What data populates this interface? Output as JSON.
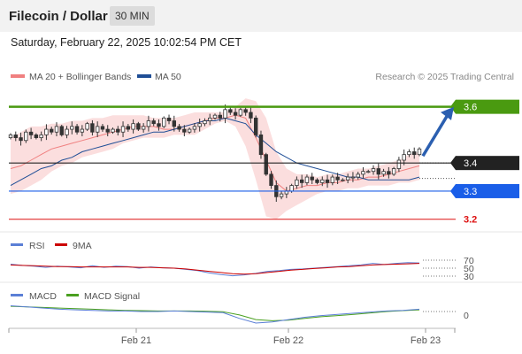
{
  "header": {
    "title": "Filecoin / Dollar",
    "timeframe": "30 MIN"
  },
  "datetime": "Saturday, February 22, 2025 10:02:54 PM CET",
  "legend": {
    "ma20": "MA 20 + Bollinger Bands",
    "ma50": "MA 50",
    "ma20_color": "#f08080",
    "ma50_color": "#1f4e96"
  },
  "copyright": "Research © 2025 Trading Central",
  "levels": [
    {
      "label": "3.6",
      "value": 3.6,
      "color": "#4a9a10",
      "style": "box"
    },
    {
      "label": "3.4",
      "value": 3.4,
      "color": "#222222",
      "style": "box"
    },
    {
      "label": "3.3",
      "value": 3.3,
      "color": "#1a5ee8",
      "style": "box"
    },
    {
      "label": "3.2",
      "value": 3.2,
      "color": "#dd1111",
      "style": "text"
    }
  ],
  "rsi": {
    "label": "RSI",
    "ma_label": "9MA",
    "levels": [
      "70",
      "50",
      "30"
    ],
    "rsi_color": "#5b7fd6",
    "ma_color": "#cc0000"
  },
  "macd": {
    "label": "MACD",
    "signal_label": "MACD Signal",
    "zero_label": "0",
    "macd_color": "#5b7fd6",
    "signal_color": "#4aa020"
  },
  "xaxis": {
    "labels": [
      "Feb 21",
      "Feb 22",
      "Feb 23"
    ]
  },
  "chart_data": {
    "type": "candlestick",
    "ylim": [
      3.155,
      3.665
    ],
    "ma20": [
      3.38,
      3.39,
      3.41,
      3.43,
      3.45,
      3.46,
      3.47,
      3.48,
      3.49,
      3.5,
      3.51,
      3.52,
      3.53,
      3.53,
      3.53,
      3.52,
      3.52,
      3.53,
      3.54,
      3.55,
      3.56,
      3.56,
      3.57,
      3.56,
      3.49,
      3.41,
      3.33,
      3.3,
      3.31,
      3.32,
      3.32,
      3.33,
      3.33,
      3.34,
      3.34,
      3.35,
      3.35,
      3.36,
      3.37,
      3.38,
      3.39
    ],
    "ma50": [
      3.32,
      3.34,
      3.36,
      3.38,
      3.39,
      3.41,
      3.42,
      3.44,
      3.45,
      3.46,
      3.47,
      3.48,
      3.49,
      3.5,
      3.51,
      3.51,
      3.52,
      3.53,
      3.54,
      3.55,
      3.55,
      3.56,
      3.55,
      3.54,
      3.5,
      3.47,
      3.44,
      3.42,
      3.4,
      3.39,
      3.38,
      3.37,
      3.36,
      3.35,
      3.35,
      3.34,
      3.34,
      3.34,
      3.34,
      3.34,
      3.35
    ],
    "bb_upper": [
      3.49,
      3.51,
      3.53,
      3.53,
      3.54,
      3.54,
      3.55,
      3.55,
      3.56,
      3.56,
      3.57,
      3.57,
      3.57,
      3.57,
      3.56,
      3.56,
      3.56,
      3.57,
      3.58,
      3.58,
      3.58,
      3.58,
      3.6,
      3.63,
      3.62,
      3.56,
      3.44,
      3.38,
      3.36,
      3.36,
      3.35,
      3.36,
      3.36,
      3.37,
      3.38,
      3.38,
      3.39,
      3.4,
      3.41,
      3.43,
      3.44
    ],
    "bb_lower": [
      3.29,
      3.3,
      3.32,
      3.34,
      3.37,
      3.39,
      3.4,
      3.42,
      3.43,
      3.44,
      3.45,
      3.47,
      3.48,
      3.49,
      3.49,
      3.49,
      3.5,
      3.5,
      3.5,
      3.52,
      3.54,
      3.55,
      3.53,
      3.46,
      3.34,
      3.21,
      3.2,
      3.23,
      3.25,
      3.27,
      3.29,
      3.3,
      3.3,
      3.31,
      3.31,
      3.32,
      3.32,
      3.32,
      3.33,
      3.33,
      3.34
    ],
    "closes": [
      3.5,
      3.49,
      3.48,
      3.51,
      3.5,
      3.49,
      3.5,
      3.52,
      3.51,
      3.53,
      3.5,
      3.52,
      3.53,
      3.51,
      3.52,
      3.54,
      3.51,
      3.53,
      3.52,
      3.51,
      3.52,
      3.51,
      3.53,
      3.52,
      3.54,
      3.52,
      3.53,
      3.55,
      3.54,
      3.53,
      3.56,
      3.55,
      3.53,
      3.52,
      3.51,
      3.52,
      3.53,
      3.54,
      3.55,
      3.56,
      3.57,
      3.56,
      3.59,
      3.58,
      3.57,
      3.59,
      3.58,
      3.56,
      3.5,
      3.43,
      3.36,
      3.32,
      3.28,
      3.29,
      3.3,
      3.32,
      3.34,
      3.33,
      3.35,
      3.34,
      3.33,
      3.34,
      3.33,
      3.35,
      3.34,
      3.34,
      3.35,
      3.35,
      3.36,
      3.37,
      3.37,
      3.38,
      3.36,
      3.37,
      3.36,
      3.38,
      3.41,
      3.43,
      3.44,
      3.43,
      3.45
    ],
    "arrow": {
      "from": 3.425,
      "to": 3.59
    }
  }
}
